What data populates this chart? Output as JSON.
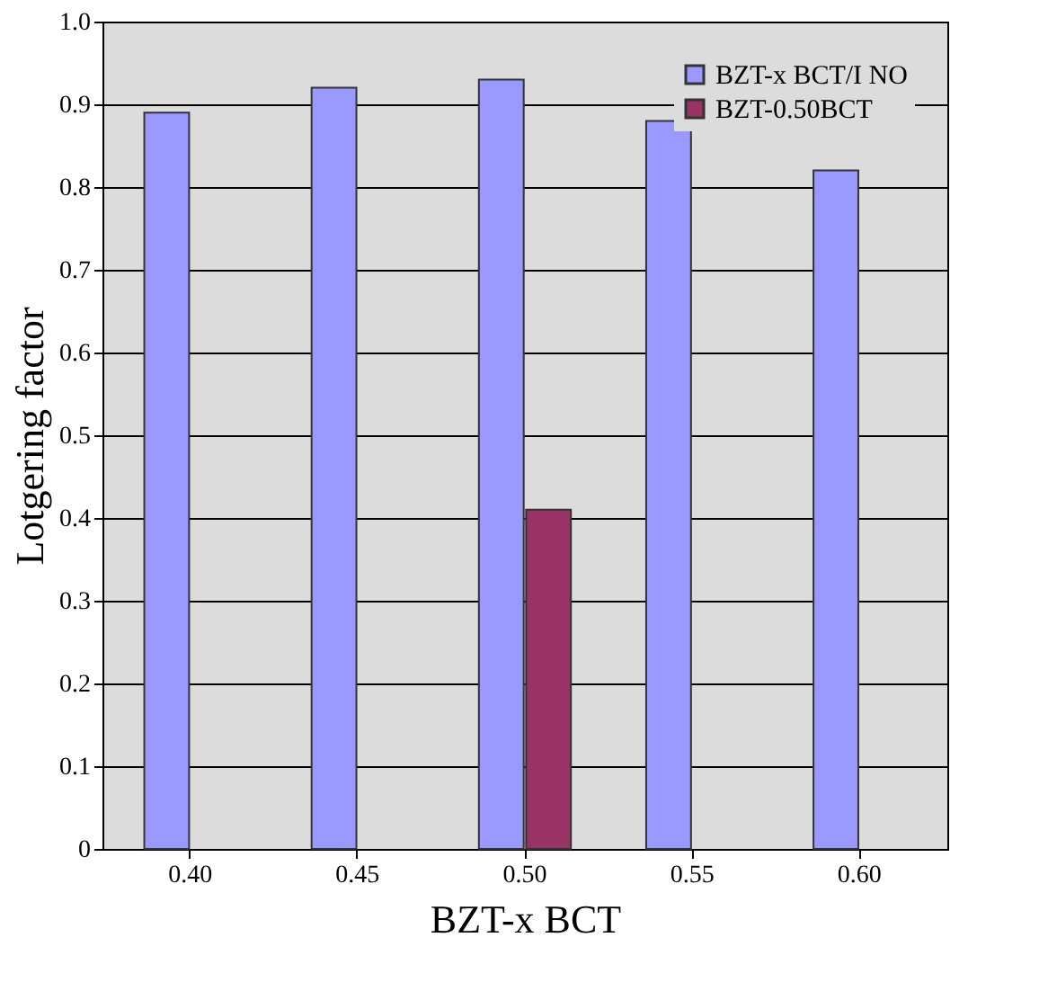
{
  "chart_data": {
    "type": "bar",
    "xlabel": "BZT-x BCT",
    "ylabel": "Lotgering factor",
    "categories": [
      "0.40",
      "0.45",
      "0.50",
      "0.55",
      "0.60"
    ],
    "series": [
      {
        "name": "BZT-x BCT/I NO",
        "color": "#9999ff",
        "values": [
          0.89,
          0.92,
          0.93,
          0.88,
          0.82
        ]
      },
      {
        "name": "BZT-0.50BCT",
        "color": "#993366",
        "values": [
          null,
          null,
          0.41,
          null,
          null
        ]
      }
    ],
    "ylim": [
      0,
      1
    ],
    "yticks": [
      0,
      0.1,
      0.2,
      0.3,
      0.4,
      0.5,
      0.6,
      0.7,
      0.8,
      0.9,
      {
        "value": 1,
        "label": "1.0"
      }
    ],
    "grid": "y",
    "legend": "top right"
  }
}
